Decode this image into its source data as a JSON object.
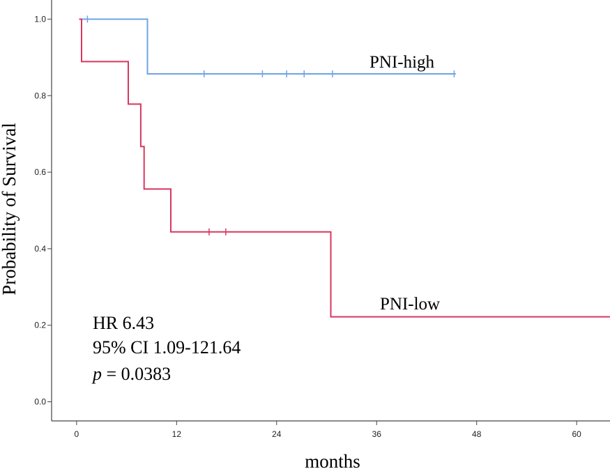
{
  "chart_data": {
    "type": "line",
    "subtype": "kaplan-meier",
    "title": "",
    "xlabel": "months",
    "ylabel": "Probability of Survival",
    "xlim": [
      -3,
      64
    ],
    "ylim": [
      -0.05,
      1.05
    ],
    "xticks": [
      0,
      12,
      24,
      36,
      48,
      60
    ],
    "yticks": [
      0.0,
      0.2,
      0.4,
      0.6,
      0.8,
      1.0
    ],
    "ytick_labels": [
      "0.0",
      "0.2",
      "0.4",
      "0.6",
      "0.8",
      "1.0"
    ],
    "series": [
      {
        "name": "PNI-high",
        "label": "PNI-high",
        "color": "#6fa3e6",
        "steps": [
          [
            0.3,
            1.0
          ],
          [
            8.5,
            1.0
          ],
          [
            8.5,
            0.857
          ],
          [
            45.5,
            0.857
          ]
        ],
        "censors": [
          [
            1.3,
            1.0
          ],
          [
            15.3,
            0.857
          ],
          [
            22.3,
            0.857
          ],
          [
            25.2,
            0.857
          ],
          [
            27.3,
            0.857
          ],
          [
            30.7,
            0.857
          ],
          [
            45.3,
            0.857
          ]
        ]
      },
      {
        "name": "PNI-low",
        "label": "PNI-low",
        "color": "#d9365e",
        "steps": [
          [
            0.3,
            1.0
          ],
          [
            0.6,
            1.0
          ],
          [
            0.6,
            0.889
          ],
          [
            6.2,
            0.889
          ],
          [
            6.2,
            0.778
          ],
          [
            7.7,
            0.778
          ],
          [
            7.7,
            0.667
          ],
          [
            8.1,
            0.667
          ],
          [
            8.1,
            0.556
          ],
          [
            11.3,
            0.556
          ],
          [
            11.3,
            0.444
          ],
          [
            30.5,
            0.444
          ],
          [
            30.5,
            0.222
          ],
          [
            64,
            0.222
          ]
        ],
        "censors": [
          [
            15.9,
            0.444
          ],
          [
            17.9,
            0.444
          ]
        ]
      }
    ],
    "annotations": {
      "hr": "HR 6.43",
      "ci": "95% CI 1.09-121.64",
      "p_symbol": "p",
      "p_value": " = 0.0383"
    }
  }
}
